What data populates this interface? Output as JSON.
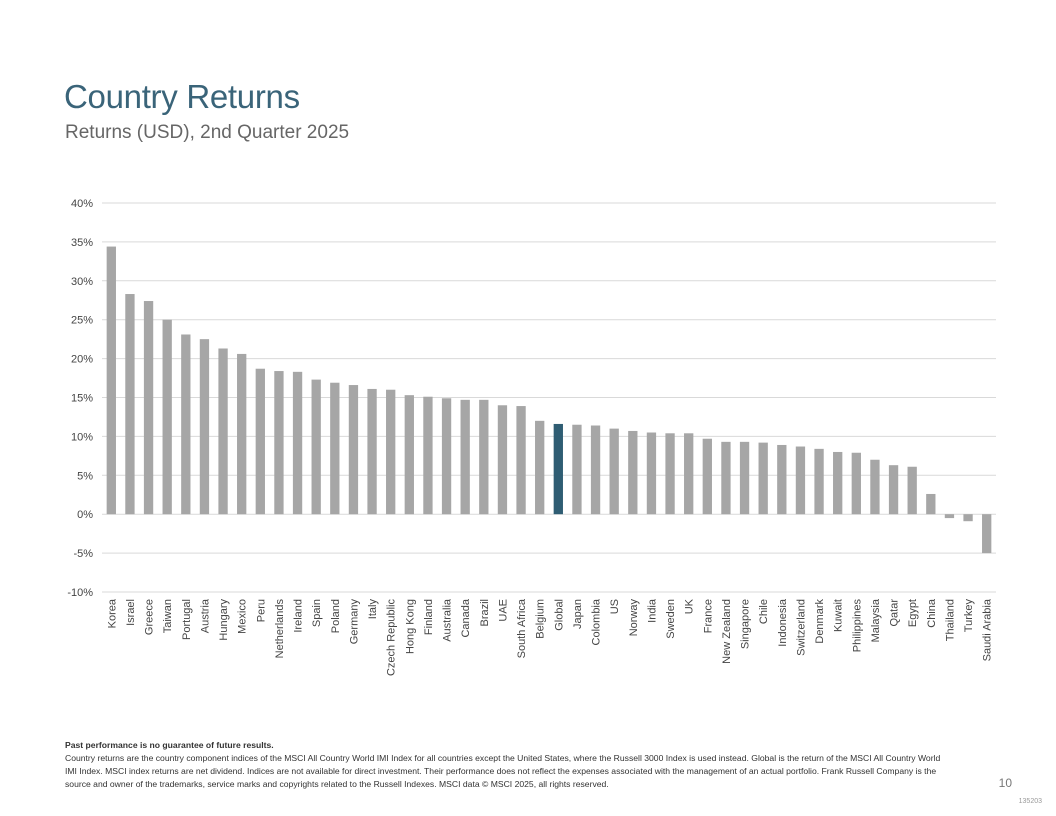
{
  "page": {
    "title": "Country Returns",
    "subtitle": "Returns (USD), 2nd Quarter 2025",
    "footnote_heading": "Past performance is no guarantee of future results.",
    "footnote_body": "Country returns are the country component indices of the MSCI All Country World IMI Index for all countries except the United States, where the Russell 3000 Index is used instead. Global is the return of the MSCI All Country World IMI Index. MSCI index returns are net dividend. Indices are not available for direct investment. Their performance does not reflect the expenses associated with the management of an actual portfolio. Frank Russell Company is the source and owner of the trademarks, service marks and copyrights related to the Russell Indexes. MSCI data © MSCI 2025, all rights reserved.",
    "page_number": "10",
    "doc_code": "135203"
  },
  "colors": {
    "bar": "#a6a6a6",
    "highlight": "#2f5d73",
    "grid": "#d9d9d9",
    "title": "#3a6479"
  },
  "chart_data": {
    "type": "bar",
    "title": "Country Returns",
    "subtitle": "Returns (USD), 2nd Quarter 2025",
    "xlabel": "",
    "ylabel": "",
    "ylim": [
      -10,
      40
    ],
    "ytick_step": 5,
    "ytick_suffix": "%",
    "grid": true,
    "highlight_category": "Global",
    "categories": [
      "Korea",
      "Israel",
      "Greece",
      "Taiwan",
      "Portugal",
      "Austria",
      "Hungary",
      "Mexico",
      "Peru",
      "Netherlands",
      "Ireland",
      "Spain",
      "Poland",
      "Germany",
      "Italy",
      "Czech Republic",
      "Hong Kong",
      "Finland",
      "Australia",
      "Canada",
      "Brazil",
      "UAE",
      "South Africa",
      "Belgium",
      "Global",
      "Japan",
      "Colombia",
      "US",
      "Norway",
      "India",
      "Sweden",
      "UK",
      "France",
      "New Zealand",
      "Singapore",
      "Chile",
      "Indonesia",
      "Switzerland",
      "Denmark",
      "Kuwait",
      "Philippines",
      "Malaysia",
      "Qatar",
      "Egypt",
      "China",
      "Thailand",
      "Turkey",
      "Saudi Arabia"
    ],
    "values": [
      34.4,
      28.3,
      27.4,
      25.0,
      23.1,
      22.5,
      21.3,
      20.6,
      18.7,
      18.4,
      18.3,
      17.3,
      16.9,
      16.6,
      16.1,
      16.0,
      15.3,
      15.1,
      14.9,
      14.7,
      14.7,
      14.0,
      13.9,
      12.0,
      11.6,
      11.5,
      11.4,
      11.0,
      10.7,
      10.5,
      10.4,
      10.4,
      9.7,
      9.3,
      9.3,
      9.2,
      8.9,
      8.7,
      8.4,
      8.0,
      7.9,
      7.0,
      6.3,
      6.1,
      2.6,
      -0.5,
      -0.9,
      -5.0
    ]
  }
}
